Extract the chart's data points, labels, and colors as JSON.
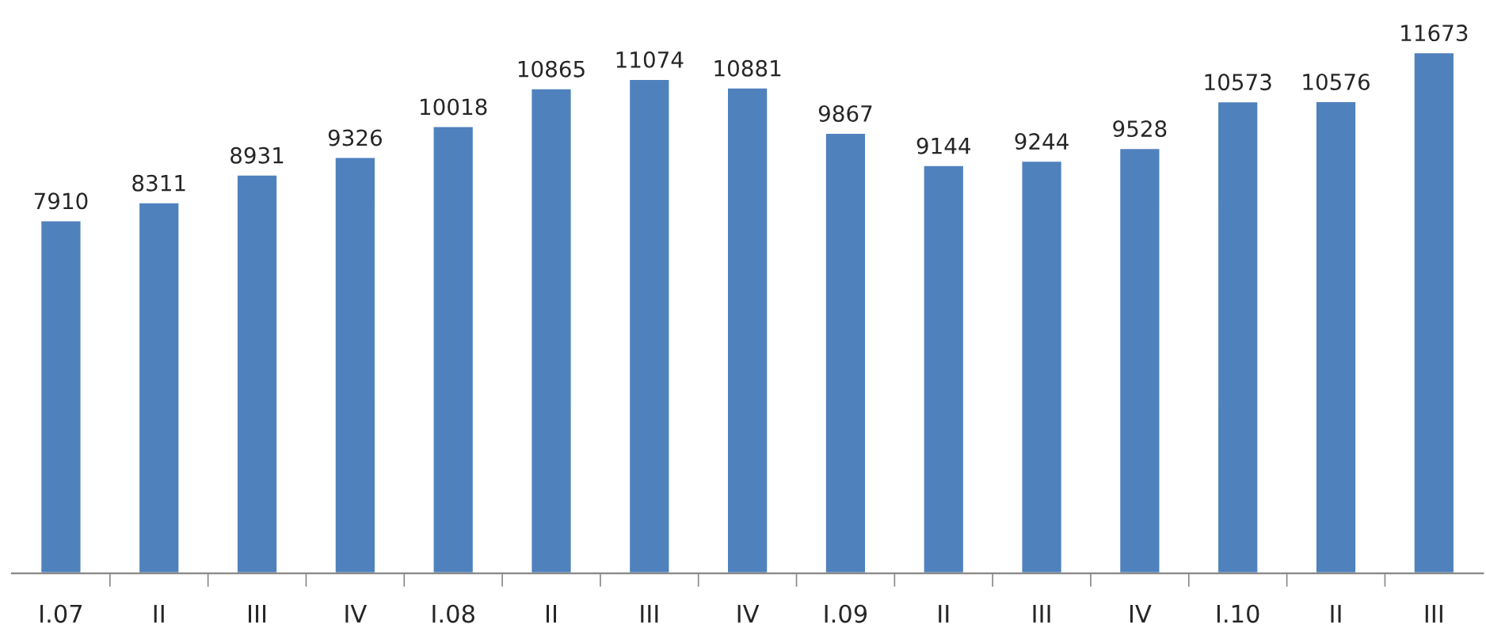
{
  "chart_data": {
    "type": "bar",
    "categories": [
      "I.07",
      "II",
      "III",
      "IV",
      "I.08",
      "II",
      "III",
      "IV",
      "I.09",
      "II",
      "III",
      "IV",
      "I.10",
      "II",
      "III"
    ],
    "values": [
      7910,
      8311,
      8931,
      9326,
      10018,
      10865,
      11074,
      10881,
      9867,
      9144,
      9244,
      9528,
      10573,
      10576,
      11673
    ],
    "color": "#4f81bd",
    "data_labels": true
  }
}
